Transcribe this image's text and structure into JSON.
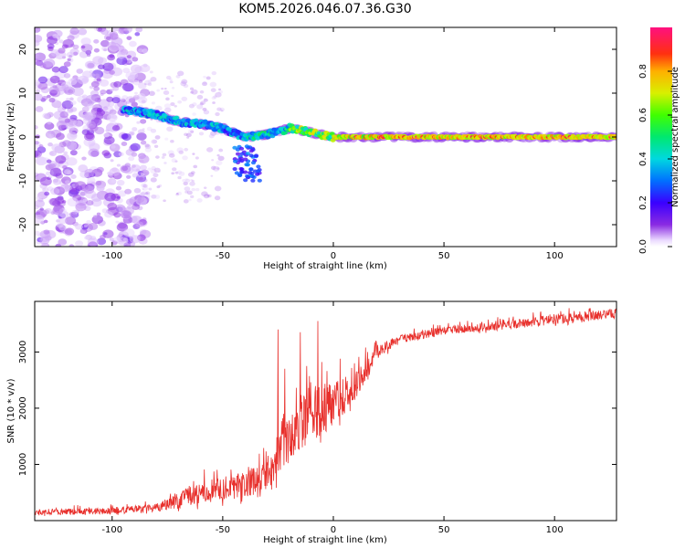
{
  "figure_title": "KOM5.2026.046.07.36.G30",
  "chart_data": [
    {
      "type": "heatmap",
      "xlabel": "Height of straight line (km)",
      "ylabel": "Frequency (Hz)",
      "xlim": [
        -135,
        128
      ],
      "ylim": [
        -25,
        25
      ],
      "x_ticks": [
        -100,
        -50,
        0,
        50,
        100
      ],
      "y_ticks": [
        -20,
        -10,
        0,
        10,
        20
      ],
      "grid": false,
      "trend": [
        {
          "x": -90,
          "f": 6
        },
        {
          "x": -80,
          "f": 5
        },
        {
          "x": -70,
          "f": 3.5
        },
        {
          "x": -60,
          "f": 3
        },
        {
          "x": -50,
          "f": 2
        },
        {
          "x": -40,
          "f": 0
        },
        {
          "x": -30,
          "f": 0.5
        },
        {
          "x": -20,
          "f": 2
        },
        {
          "x": -10,
          "f": 1
        },
        {
          "x": 0,
          "f": 0
        },
        {
          "x": 128,
          "f": 0
        }
      ],
      "colorbar": {
        "label": "Normalized spectral amplitude",
        "ticks": [
          0.0,
          0.2,
          0.4,
          0.6,
          0.8
        ],
        "tick_labels": [
          "0.0",
          "0.2",
          "0.4",
          "0.6",
          "0.8"
        ],
        "range": [
          0,
          1
        ]
      }
    },
    {
      "type": "line",
      "xlabel": "Height of straight line (km)",
      "ylabel": "SNR (10 * v/v)",
      "xlim": [
        -135,
        128
      ],
      "ylim": [
        0,
        3900
      ],
      "x_ticks": [
        -100,
        -50,
        0,
        50,
        100
      ],
      "y_ticks": [
        1000,
        2000,
        3000
      ],
      "grid": false,
      "color": "#e8302c",
      "envelope": [
        {
          "x": -135,
          "base": 130,
          "amp": 100
        },
        {
          "x": -100,
          "base": 150,
          "amp": 120
        },
        {
          "x": -80,
          "base": 200,
          "amp": 150
        },
        {
          "x": -70,
          "base": 300,
          "amp": 300
        },
        {
          "x": -60,
          "base": 400,
          "amp": 400
        },
        {
          "x": -40,
          "base": 550,
          "amp": 450
        },
        {
          "x": -30,
          "base": 700,
          "amp": 600
        },
        {
          "x": -20,
          "base": 1400,
          "amp": 1000
        },
        {
          "x": -10,
          "base": 1700,
          "amp": 1000
        },
        {
          "x": 0,
          "base": 1900,
          "amp": 800
        },
        {
          "x": 10,
          "base": 2300,
          "amp": 500
        },
        {
          "x": 20,
          "base": 2950,
          "amp": 250
        },
        {
          "x": 30,
          "base": 3200,
          "amp": 150
        },
        {
          "x": 50,
          "base": 3350,
          "amp": 150
        },
        {
          "x": 80,
          "base": 3450,
          "amp": 150
        },
        {
          "x": 100,
          "base": 3550,
          "amp": 180
        },
        {
          "x": 128,
          "base": 3650,
          "amp": 180
        }
      ],
      "spikes": [
        {
          "x": -25,
          "y": 3400
        },
        {
          "x": -15,
          "y": 3350
        },
        {
          "x": -7,
          "y": 3550
        },
        {
          "x": -12,
          "y": 2750
        },
        {
          "x": -22,
          "y": 2700
        }
      ]
    }
  ],
  "colors": {
    "line": "#e8302c",
    "axis": "#000000",
    "background": "#ffffff"
  }
}
